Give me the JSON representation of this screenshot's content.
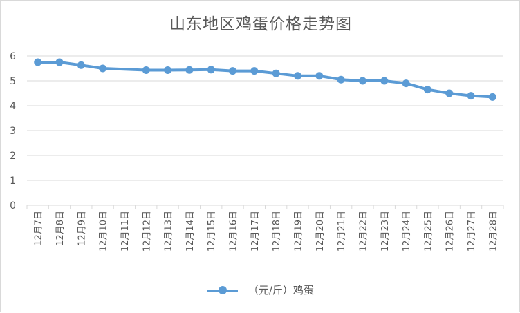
{
  "colors": {
    "series": "#5b9bd5",
    "grid": "#d9d9d9",
    "text": "#595959"
  },
  "chart_data": {
    "type": "line",
    "title": "山东地区鸡蛋价格走势图",
    "xlabel": "",
    "ylabel": "",
    "ylim": [
      0,
      6
    ],
    "yticks": [
      "0",
      "1",
      "2",
      "3",
      "4",
      "5",
      "6"
    ],
    "grid": true,
    "legend_position": "bottom",
    "categories": [
      "12月7日",
      "12月8日",
      "12月9日",
      "12月10日",
      "12月11日",
      "12月12日",
      "12月13日",
      "12月14日",
      "12月15日",
      "12月16日",
      "12月17日",
      "12月18日",
      "12月19日",
      "12月20日",
      "12月21日",
      "12月22日",
      "12月23日",
      "12月24日",
      "12月25日",
      "12月26日",
      "12月27日",
      "12月28日"
    ],
    "series": [
      {
        "name": "（元/斤）鸡蛋",
        "values": [
          5.75,
          5.75,
          5.63,
          5.5,
          null,
          5.43,
          5.43,
          5.44,
          5.45,
          5.4,
          5.4,
          5.3,
          5.2,
          5.2,
          5.05,
          5.0,
          5.0,
          4.9,
          4.65,
          4.5,
          4.4,
          4.35
        ]
      }
    ]
  }
}
